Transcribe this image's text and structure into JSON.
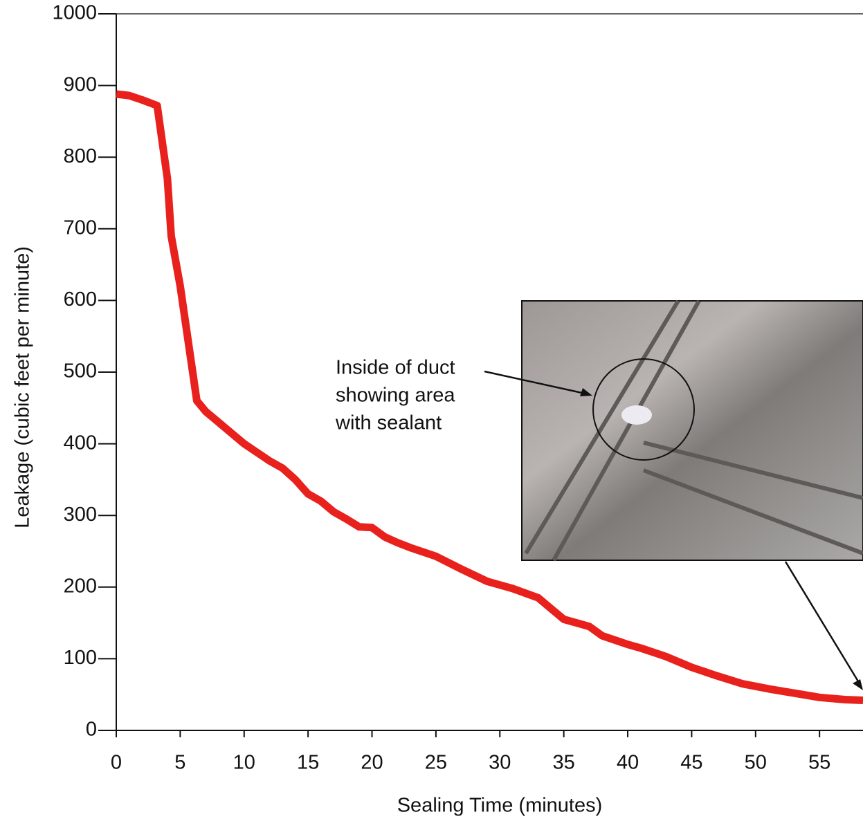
{
  "chart_data": {
    "type": "line",
    "xlabel": "Sealing Time (minutes)",
    "ylabel": "Leakage (cubic feet per minute)",
    "annotation": [
      "Inside of duct",
      "showing area",
      "with sealant"
    ],
    "xlim": [
      0,
      58.4
    ],
    "ylim": [
      0,
      1000
    ],
    "xticks": [
      0,
      5,
      10,
      15,
      20,
      25,
      30,
      35,
      40,
      45,
      50,
      55
    ],
    "yticks": [
      0,
      100,
      200,
      300,
      400,
      500,
      600,
      700,
      800,
      900,
      1000
    ],
    "series": [
      {
        "color": "#e8211d",
        "x": [
          0,
          1,
          2,
          3.2,
          4,
          4.3,
          5,
          6.3,
          7,
          8,
          9,
          10,
          11,
          12,
          13,
          14,
          15,
          16,
          17,
          18,
          19,
          20,
          21,
          22,
          23,
          25,
          27,
          29,
          31,
          33,
          34,
          35,
          36,
          37,
          38,
          40,
          41,
          43,
          45,
          47,
          49,
          51,
          53,
          55,
          57,
          58.4
        ],
        "values": [
          888,
          886,
          880,
          872,
          770,
          690,
          620,
          460,
          445,
          430,
          415,
          400,
          388,
          376,
          366,
          350,
          330,
          320,
          305,
          295,
          284,
          283,
          270,
          262,
          255,
          243,
          225,
          208,
          198,
          185,
          170,
          155,
          150,
          145,
          132,
          120,
          115,
          103,
          88,
          76,
          65,
          58,
          52,
          46,
          43,
          42
        ]
      }
    ]
  }
}
